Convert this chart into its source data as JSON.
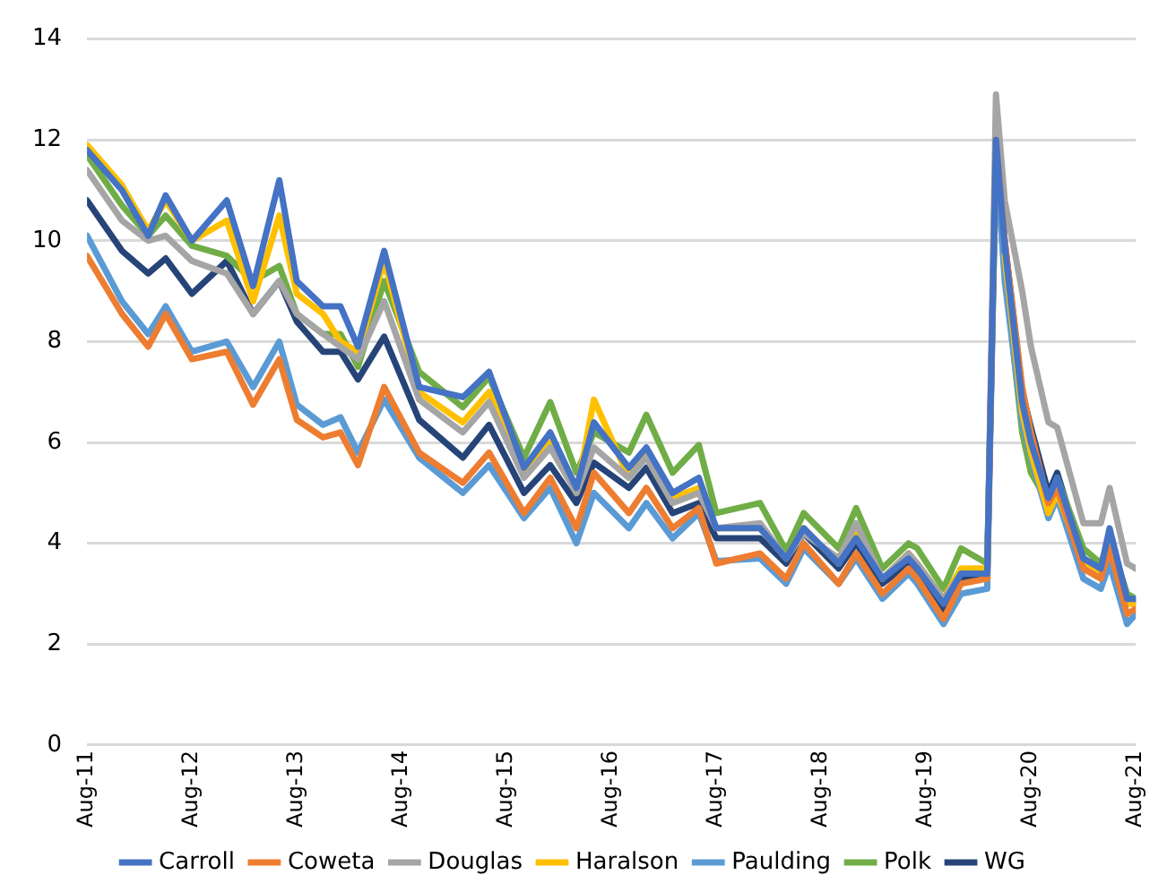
{
  "chart_data": {
    "type": "line",
    "x": [
      "2011-08",
      "2011-12",
      "2012-03",
      "2012-05",
      "2012-08",
      "2012-12",
      "2013-03",
      "2013-06",
      "2013-08",
      "2013-11",
      "2014-01",
      "2014-03",
      "2014-06",
      "2014-10",
      "2015-03",
      "2015-06",
      "2015-10",
      "2016-01",
      "2016-04",
      "2016-06",
      "2016-10",
      "2016-12",
      "2017-03",
      "2017-06",
      "2017-08",
      "2018-01",
      "2018-04",
      "2018-06",
      "2018-10",
      "2018-12",
      "2019-03",
      "2019-06",
      "2019-07",
      "2019-10",
      "2019-12",
      "2020-03",
      "2020-04",
      "2020-05",
      "2020-07",
      "2020-08",
      "2020-10",
      "2020-11",
      "2021-02",
      "2021-04",
      "2021-05",
      "2021-07",
      "2021-08"
    ],
    "xlim": [
      "2011-08",
      "2021-08"
    ],
    "xticks": [
      {
        "value": "2011-08",
        "label": "Aug-11"
      },
      {
        "value": "2012-08",
        "label": "Aug-12"
      },
      {
        "value": "2013-08",
        "label": "Aug-13"
      },
      {
        "value": "2014-08",
        "label": "Aug-14"
      },
      {
        "value": "2015-08",
        "label": "Aug-15"
      },
      {
        "value": "2016-08",
        "label": "Aug-16"
      },
      {
        "value": "2017-08",
        "label": "Aug-17"
      },
      {
        "value": "2018-08",
        "label": "Aug-18"
      },
      {
        "value": "2019-08",
        "label": "Aug-19"
      },
      {
        "value": "2020-08",
        "label": "Aug-20"
      },
      {
        "value": "2021-08",
        "label": "Aug-21"
      }
    ],
    "ylim": [
      0,
      14
    ],
    "yticks": [
      0,
      2,
      4,
      6,
      8,
      10,
      12,
      14
    ],
    "grid": "y",
    "legend": "bottom",
    "marker": "none",
    "line_style": "solid",
    "series": [
      {
        "name": "Carroll",
        "color": "#4472c4",
        "values": [
          11.8,
          11.0,
          10.1,
          10.9,
          10.0,
          10.8,
          9.1,
          11.2,
          9.2,
          8.7,
          8.7,
          7.9,
          9.8,
          7.1,
          6.9,
          7.4,
          5.5,
          6.2,
          5.1,
          6.4,
          5.5,
          5.9,
          5.0,
          5.3,
          4.3,
          4.3,
          3.7,
          4.3,
          3.6,
          4.1,
          3.3,
          3.7,
          3.5,
          2.8,
          3.4,
          3.4,
          12.0,
          9.9,
          6.8,
          6.0,
          4.9,
          5.3,
          3.7,
          3.5,
          4.3,
          2.9,
          2.9
        ]
      },
      {
        "name": "Coweta",
        "color": "#ed7d31",
        "values": [
          9.7,
          8.55,
          7.9,
          8.55,
          7.65,
          7.8,
          6.75,
          7.65,
          6.45,
          6.1,
          6.2,
          5.55,
          7.1,
          5.8,
          5.2,
          5.8,
          4.6,
          5.3,
          4.3,
          5.4,
          4.6,
          5.1,
          4.3,
          4.7,
          3.6,
          3.8,
          3.3,
          4.0,
          3.2,
          3.8,
          3.0,
          3.5,
          3.3,
          2.5,
          3.2,
          3.3,
          12.0,
          10.0,
          7.1,
          6.2,
          4.8,
          5.1,
          3.5,
          3.3,
          3.9,
          2.6,
          2.7
        ]
      },
      {
        "name": "Douglas",
        "color": "#a5a5a5",
        "values": [
          11.4,
          10.4,
          10.0,
          10.1,
          9.6,
          9.35,
          8.55,
          9.2,
          8.55,
          8.15,
          7.9,
          7.65,
          8.8,
          6.85,
          6.2,
          6.8,
          5.3,
          5.9,
          5.0,
          5.9,
          5.3,
          5.7,
          4.8,
          5.0,
          4.3,
          4.4,
          3.7,
          4.2,
          3.7,
          4.4,
          3.3,
          3.8,
          3.6,
          2.9,
          3.4,
          3.4,
          12.9,
          10.8,
          9.0,
          7.9,
          6.4,
          6.3,
          4.4,
          4.4,
          5.1,
          3.6,
          3.5
        ]
      },
      {
        "name": "Haralson",
        "color": "#ffc000",
        "values": [
          11.9,
          11.1,
          10.2,
          10.8,
          10.0,
          10.4,
          8.8,
          10.5,
          8.95,
          8.55,
          8.0,
          7.8,
          9.6,
          7.0,
          6.4,
          7.0,
          5.4,
          6.0,
          5.0,
          6.85,
          5.3,
          5.8,
          4.9,
          5.1,
          4.3,
          4.3,
          3.7,
          4.3,
          3.6,
          4.2,
          3.3,
          3.8,
          3.6,
          2.9,
          3.5,
          3.5,
          null,
          9.7,
          6.6,
          5.8,
          4.6,
          5.0,
          3.6,
          3.4,
          3.9,
          2.8,
          2.8
        ]
      },
      {
        "name": "Paulding",
        "color": "#5b9bd5",
        "values": [
          10.1,
          8.8,
          8.15,
          8.7,
          7.8,
          8.0,
          7.1,
          8.0,
          6.75,
          6.35,
          6.5,
          5.8,
          6.85,
          5.7,
          5.0,
          5.55,
          4.5,
          5.1,
          4.0,
          5.0,
          4.3,
          4.8,
          4.1,
          4.6,
          3.65,
          3.7,
          3.2,
          3.9,
          3.2,
          3.7,
          2.9,
          3.4,
          3.2,
          2.4,
          3.0,
          3.1,
          11.8,
          9.2,
          6.4,
          5.7,
          4.5,
          4.9,
          3.3,
          3.1,
          3.6,
          2.4,
          2.6
        ]
      },
      {
        "name": "Polk",
        "color": "#70ad47",
        "values": [
          11.7,
          10.7,
          10.1,
          10.5,
          9.9,
          9.7,
          9.2,
          9.5,
          8.55,
          8.15,
          8.15,
          7.5,
          9.2,
          7.4,
          6.7,
          7.3,
          5.7,
          6.8,
          5.4,
          6.2,
          5.8,
          6.55,
          5.4,
          5.95,
          4.6,
          4.8,
          3.85,
          4.6,
          3.9,
          4.7,
          3.5,
          4.0,
          3.9,
          3.1,
          3.9,
          3.6,
          11.5,
          9.4,
          6.2,
          5.4,
          4.8,
          5.3,
          3.9,
          3.6,
          4.1,
          3.0,
          2.9
        ]
      },
      {
        "name": "WG",
        "color": "#264478",
        "values": [
          10.8,
          9.8,
          9.35,
          9.65,
          8.95,
          9.6,
          8.55,
          9.2,
          8.4,
          7.8,
          7.8,
          7.25,
          8.1,
          6.45,
          5.7,
          6.35,
          5.0,
          5.55,
          4.8,
          5.6,
          5.1,
          5.5,
          4.6,
          4.8,
          4.1,
          4.1,
          3.6,
          4.2,
          3.5,
          4.0,
          3.2,
          3.6,
          3.45,
          2.65,
          3.3,
          3.4,
          12.2,
          10.0,
          7.0,
          6.3,
          5.0,
          5.4,
          3.7,
          3.5,
          4.1,
          2.85,
          2.85
        ]
      }
    ]
  }
}
